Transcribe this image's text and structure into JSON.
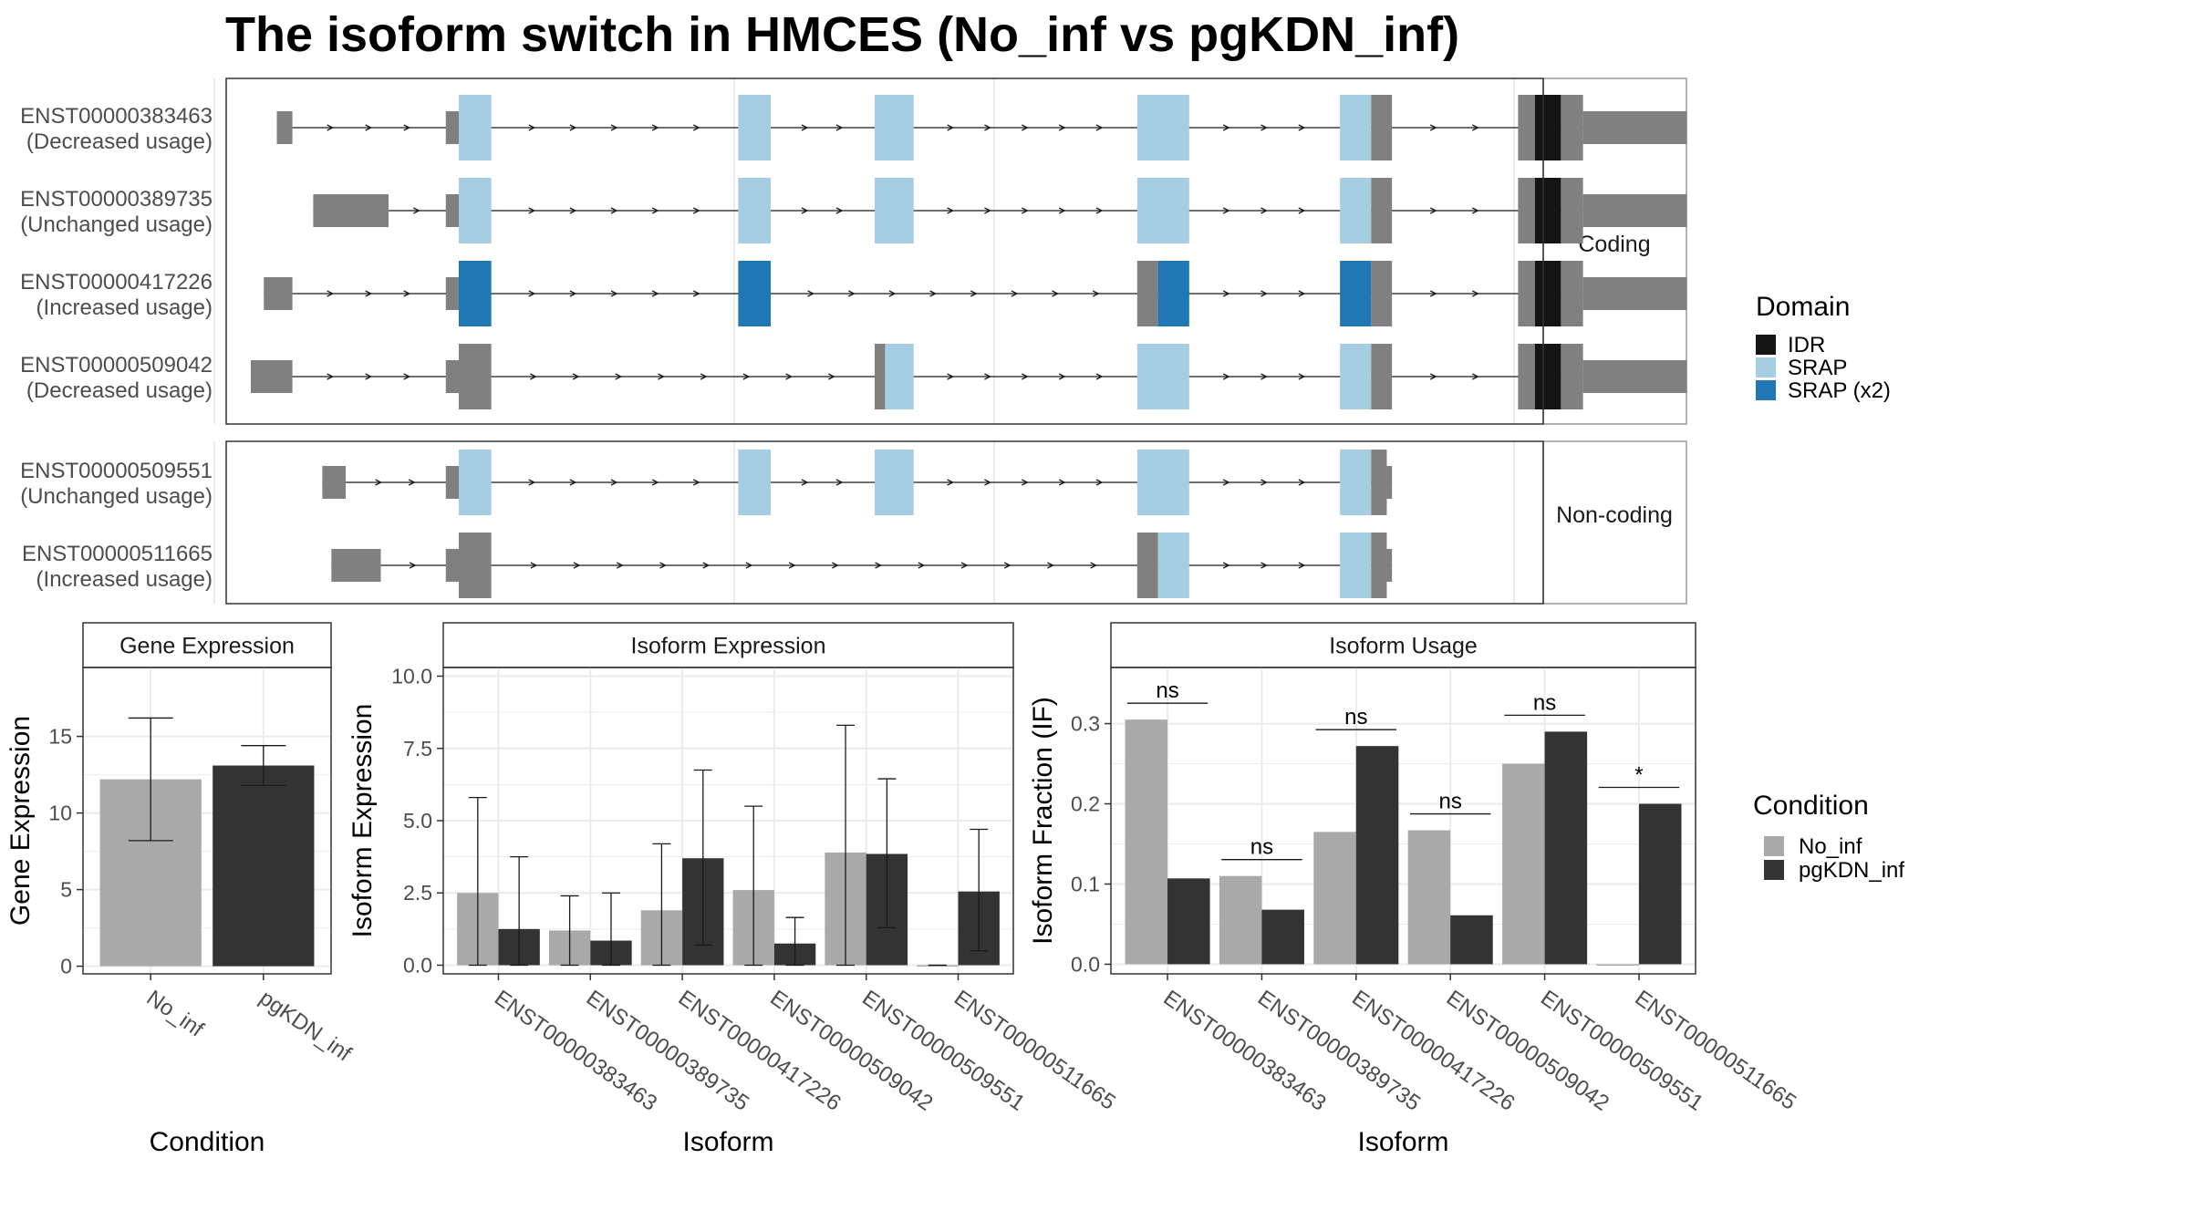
{
  "title": "The isoform switch in HMCES (No_inf vs pgKDN_inf)",
  "colors": {
    "exon": "#808080",
    "IDR": "#141414",
    "SRAP": "#a6cee3",
    "SRAP_x2": "#1f78b4",
    "No_inf": "#a9a9a9",
    "pgKDN_inf": "#333333",
    "intron": "#1a1a1a",
    "grid": "#ebebeb",
    "strip": "#ffffff"
  },
  "transcript_panel": {
    "groups": [
      "Coding",
      "Non-coding"
    ],
    "legend_title": "Domain",
    "legend_items": [
      {
        "name": "IDR",
        "color_key": "IDR"
      },
      {
        "name": "SRAP",
        "color_key": "SRAP"
      },
      {
        "name": "SRAP (x2)",
        "color_key": "SRAP_x2"
      }
    ]
  },
  "chart_data": [
    {
      "type": "transcript-structure",
      "xlim": [
        0,
        1000
      ],
      "gridlines": [
        0,
        400,
        600,
        1000
      ],
      "transcripts": [
        {
          "group": "Coding",
          "id": "ENST00000383463",
          "label2": "(Decreased usage)",
          "exons": [
            {
              "s": 20,
              "e": 32,
              "h": "utr"
            },
            {
              "s": 150,
              "e": 160,
              "h": "utr"
            },
            {
              "s": 160,
              "e": 185,
              "h": "cds",
              "c": "SRAP"
            },
            {
              "s": 375,
              "e": 400,
              "h": "cds",
              "c": "SRAP"
            },
            {
              "s": 480,
              "e": 510,
              "h": "cds",
              "c": "SRAP"
            },
            {
              "s": 682,
              "e": 722,
              "h": "cds",
              "c": "SRAP"
            },
            {
              "s": 838,
              "e": 862,
              "h": "cds",
              "c": "SRAP"
            },
            {
              "s": 862,
              "e": 878,
              "h": "cds",
              "c": "exon"
            },
            {
              "s": 975,
              "e": 988,
              "h": "cds",
              "c": "exon"
            },
            {
              "s": 988,
              "e": 1008,
              "h": "cds",
              "c": "IDR"
            },
            {
              "s": 1008,
              "e": 1025,
              "h": "cds",
              "c": "exon"
            },
            {
              "s": 1025,
              "e": 1105,
              "h": "utr"
            }
          ]
        },
        {
          "group": "Coding",
          "id": "ENST00000389735",
          "label2": "(Unchanged usage)",
          "exons": [
            {
              "s": 48,
              "e": 106,
              "h": "utr"
            },
            {
              "s": 150,
              "e": 160,
              "h": "utr"
            },
            {
              "s": 160,
              "e": 185,
              "h": "cds",
              "c": "SRAP"
            },
            {
              "s": 375,
              "e": 400,
              "h": "cds",
              "c": "SRAP"
            },
            {
              "s": 480,
              "e": 510,
              "h": "cds",
              "c": "SRAP"
            },
            {
              "s": 682,
              "e": 722,
              "h": "cds",
              "c": "SRAP"
            },
            {
              "s": 838,
              "e": 862,
              "h": "cds",
              "c": "SRAP"
            },
            {
              "s": 862,
              "e": 878,
              "h": "cds",
              "c": "exon"
            },
            {
              "s": 975,
              "e": 988,
              "h": "cds",
              "c": "exon"
            },
            {
              "s": 988,
              "e": 1008,
              "h": "cds",
              "c": "IDR"
            },
            {
              "s": 1008,
              "e": 1025,
              "h": "cds",
              "c": "exon"
            },
            {
              "s": 1025,
              "e": 1105,
              "h": "utr"
            }
          ]
        },
        {
          "group": "Coding",
          "id": "ENST00000417226",
          "label2": "(Increased usage)",
          "exons": [
            {
              "s": 10,
              "e": 32,
              "h": "utr"
            },
            {
              "s": 150,
              "e": 160,
              "h": "utr"
            },
            {
              "s": 160,
              "e": 185,
              "h": "cds",
              "c": "SRAP_x2"
            },
            {
              "s": 375,
              "e": 400,
              "h": "cds",
              "c": "SRAP_x2"
            },
            {
              "s": 682,
              "e": 698,
              "h": "cds",
              "c": "exon"
            },
            {
              "s": 698,
              "e": 722,
              "h": "cds",
              "c": "SRAP_x2"
            },
            {
              "s": 838,
              "e": 862,
              "h": "cds",
              "c": "SRAP_x2"
            },
            {
              "s": 862,
              "e": 878,
              "h": "cds",
              "c": "exon"
            },
            {
              "s": 975,
              "e": 988,
              "h": "cds",
              "c": "exon"
            },
            {
              "s": 988,
              "e": 1008,
              "h": "cds",
              "c": "IDR"
            },
            {
              "s": 1008,
              "e": 1025,
              "h": "cds",
              "c": "exon"
            },
            {
              "s": 1025,
              "e": 1105,
              "h": "utr"
            }
          ]
        },
        {
          "group": "Coding",
          "id": "ENST00000509042",
          "label2": "(Decreased usage)",
          "exons": [
            {
              "s": 0,
              "e": 32,
              "h": "utr"
            },
            {
              "s": 150,
              "e": 160,
              "h": "utr"
            },
            {
              "s": 160,
              "e": 185,
              "h": "cds",
              "c": "exon"
            },
            {
              "s": 480,
              "e": 488,
              "h": "cds",
              "c": "exon"
            },
            {
              "s": 488,
              "e": 510,
              "h": "cds",
              "c": "SRAP"
            },
            {
              "s": 682,
              "e": 722,
              "h": "cds",
              "c": "SRAP"
            },
            {
              "s": 838,
              "e": 862,
              "h": "cds",
              "c": "SRAP"
            },
            {
              "s": 862,
              "e": 878,
              "h": "cds",
              "c": "exon"
            },
            {
              "s": 975,
              "e": 988,
              "h": "cds",
              "c": "exon"
            },
            {
              "s": 988,
              "e": 1008,
              "h": "cds",
              "c": "IDR"
            },
            {
              "s": 1008,
              "e": 1025,
              "h": "cds",
              "c": "exon"
            },
            {
              "s": 1025,
              "e": 1105,
              "h": "utr"
            }
          ]
        },
        {
          "group": "Non-coding",
          "id": "ENST00000509551",
          "label2": "(Unchanged usage)",
          "exons": [
            {
              "s": 55,
              "e": 73,
              "h": "utr"
            },
            {
              "s": 150,
              "e": 160,
              "h": "utr"
            },
            {
              "s": 160,
              "e": 185,
              "h": "cds",
              "c": "SRAP"
            },
            {
              "s": 375,
              "e": 400,
              "h": "cds",
              "c": "SRAP"
            },
            {
              "s": 480,
              "e": 510,
              "h": "cds",
              "c": "SRAP"
            },
            {
              "s": 682,
              "e": 722,
              "h": "cds",
              "c": "SRAP"
            },
            {
              "s": 838,
              "e": 862,
              "h": "cds",
              "c": "SRAP"
            },
            {
              "s": 862,
              "e": 874,
              "h": "cds",
              "c": "exon"
            },
            {
              "s": 874,
              "e": 878,
              "h": "utr"
            }
          ]
        },
        {
          "group": "Non-coding",
          "id": "ENST00000511665",
          "label2": "(Increased usage)",
          "exons": [
            {
              "s": 62,
              "e": 100,
              "h": "utr"
            },
            {
              "s": 150,
              "e": 160,
              "h": "utr"
            },
            {
              "s": 160,
              "e": 185,
              "h": "cds",
              "c": "exon"
            },
            {
              "s": 682,
              "e": 698,
              "h": "cds",
              "c": "exon"
            },
            {
              "s": 698,
              "e": 722,
              "h": "cds",
              "c": "SRAP"
            },
            {
              "s": 838,
              "e": 862,
              "h": "cds",
              "c": "SRAP"
            },
            {
              "s": 862,
              "e": 874,
              "h": "cds",
              "c": "exon"
            },
            {
              "s": 874,
              "e": 878,
              "h": "utr"
            }
          ]
        }
      ]
    },
    {
      "type": "bar",
      "strip": "Gene Expression",
      "xlabel": "Condition",
      "ylabel": "Gene Expression",
      "categories": [
        "No_inf",
        "pgKDN_inf"
      ],
      "values": [
        12.2,
        13.1
      ],
      "error": [
        [
          8.2,
          16.2
        ],
        [
          11.8,
          14.4
        ]
      ],
      "ylim": [
        -0.5,
        19.5
      ],
      "yticks": [
        0,
        5,
        10,
        15
      ]
    },
    {
      "type": "bar",
      "strip": "Isoform Expression",
      "xlabel": "Isoform",
      "ylabel": "Isoform Expression",
      "categories": [
        "ENST00000383463",
        "ENST00000389735",
        "ENST00000417226",
        "ENST00000509042",
        "ENST00000509551",
        "ENST00000511665"
      ],
      "series": [
        {
          "name": "No_inf",
          "values": [
            2.5,
            1.2,
            1.9,
            2.6,
            3.9,
            0.0
          ],
          "error": [
            [
              0.0,
              5.8
            ],
            [
              0.0,
              2.4
            ],
            [
              0.0,
              4.2
            ],
            [
              0.0,
              5.5
            ],
            [
              0.0,
              8.3
            ],
            [
              0.0,
              0.0
            ]
          ]
        },
        {
          "name": "pgKDN_inf",
          "values": [
            1.25,
            0.85,
            3.7,
            0.75,
            3.85,
            2.55
          ],
          "error": [
            [
              0.0,
              3.75
            ],
            [
              0.0,
              2.5
            ],
            [
              0.7,
              6.75
            ],
            [
              0.0,
              1.65
            ],
            [
              1.3,
              6.45
            ],
            [
              0.5,
              4.7
            ]
          ]
        }
      ],
      "ylim": [
        -0.3,
        10.3
      ],
      "yticks": [
        0.0,
        2.5,
        5.0,
        7.5,
        10.0
      ],
      "ytick_labels": [
        "0.0",
        "2.5",
        "5.0",
        "7.5",
        "10.0"
      ]
    },
    {
      "type": "bar",
      "strip": "Isoform Usage",
      "xlabel": "Isoform",
      "ylabel": "Isoform Fraction (IF)",
      "categories": [
        "ENST00000383463",
        "ENST00000389735",
        "ENST00000417226",
        "ENST00000509042",
        "ENST00000509551",
        "ENST00000511665"
      ],
      "series": [
        {
          "name": "No_inf",
          "values": [
            0.305,
            0.11,
            0.165,
            0.167,
            0.25,
            0.0
          ]
        },
        {
          "name": "pgKDN_inf",
          "values": [
            0.107,
            0.068,
            0.272,
            0.061,
            0.29,
            0.2
          ]
        }
      ],
      "significance": [
        "ns",
        "ns",
        "ns",
        "ns",
        "ns",
        "*"
      ],
      "ylim": [
        -0.012,
        0.37
      ],
      "yticks": [
        0.0,
        0.1,
        0.2,
        0.3
      ],
      "ytick_labels": [
        "0.0",
        "0.1",
        "0.2",
        "0.3"
      ]
    }
  ],
  "condition_legend": {
    "title": "Condition",
    "items": [
      {
        "name": "No_inf",
        "color_key": "No_inf"
      },
      {
        "name": "pgKDN_inf",
        "color_key": "pgKDN_inf"
      }
    ]
  }
}
